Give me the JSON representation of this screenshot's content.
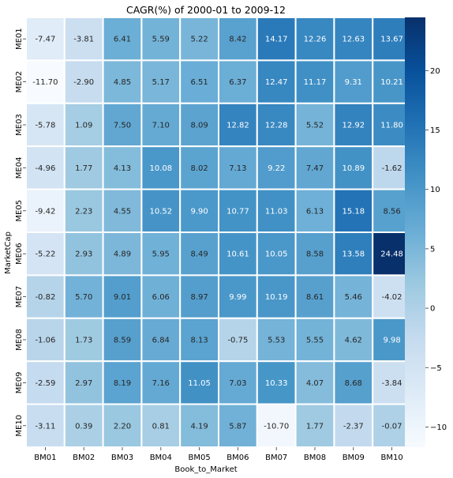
{
  "chart_data": {
    "type": "heatmap",
    "title": "CAGR(%) of 2000-01 to 2009-12",
    "xlabel": "Book_to_Market",
    "ylabel": "MarketCap",
    "x_categories": [
      "BM01",
      "BM02",
      "BM03",
      "BM04",
      "BM05",
      "BM06",
      "BM07",
      "BM08",
      "BM09",
      "BM10"
    ],
    "y_categories": [
      "ME01",
      "ME02",
      "ME03",
      "ME04",
      "ME05",
      "ME06",
      "ME07",
      "ME08",
      "ME09",
      "ME10"
    ],
    "values": [
      [
        -7.47,
        -3.81,
        6.41,
        5.59,
        5.22,
        8.42,
        14.17,
        12.26,
        12.63,
        13.67
      ],
      [
        -11.7,
        -2.9,
        4.85,
        5.17,
        6.51,
        6.37,
        12.47,
        11.17,
        9.31,
        10.21
      ],
      [
        -5.78,
        1.09,
        7.5,
        7.1,
        8.09,
        12.82,
        12.28,
        5.52,
        12.92,
        11.8
      ],
      [
        -4.96,
        1.77,
        4.13,
        10.08,
        8.02,
        7.13,
        9.22,
        7.47,
        10.89,
        -1.62
      ],
      [
        -9.42,
        2.23,
        4.55,
        10.52,
        9.9,
        10.77,
        11.03,
        6.13,
        15.18,
        8.56
      ],
      [
        -5.22,
        2.93,
        4.89,
        5.95,
        8.49,
        10.61,
        10.05,
        8.58,
        13.58,
        24.48
      ],
      [
        -0.82,
        5.7,
        9.01,
        6.06,
        8.97,
        9.99,
        10.19,
        8.61,
        5.46,
        -4.02
      ],
      [
        -1.06,
        1.73,
        8.59,
        6.84,
        8.13,
        -0.75,
        5.53,
        5.55,
        4.62,
        9.98
      ],
      [
        -2.59,
        2.97,
        8.19,
        7.16,
        11.05,
        7.03,
        10.33,
        4.07,
        8.68,
        -3.84
      ],
      [
        -3.11,
        0.39,
        2.2,
        0.81,
        4.19,
        5.87,
        -10.7,
        1.77,
        -2.37,
        -0.07
      ]
    ],
    "value_format": "2 decimals",
    "colorscale": "Blues",
    "color_range": [
      -11.7,
      24.48
    ],
    "colorbar_ticks": [
      -10,
      -5,
      0,
      5,
      10,
      15,
      20
    ],
    "cell_borders": "white",
    "legend": "colorbar right"
  }
}
